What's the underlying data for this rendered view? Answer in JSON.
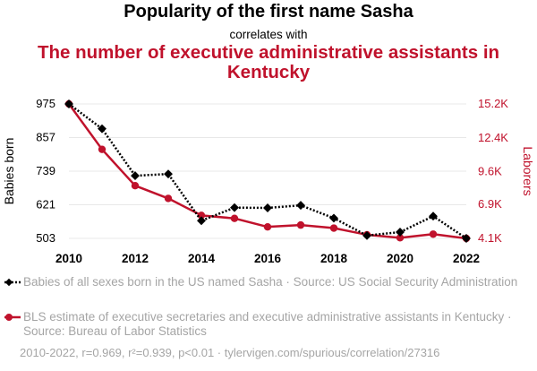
{
  "title_line1": "Popularity of the first name Sasha",
  "title_line2": "correlates with",
  "title_line3": "The number of executive administrative assistants in Kentucky",
  "legend": [
    {
      "text": "Babies of all sexes born in the US named Sasha · Source: US Social Security Administration"
    },
    {
      "text": "BLS estimate of executive secretaries and executive administrative assistants in Kentucky · Source: Bureau of Labor Statistics"
    }
  ],
  "footer": "2010-2022, r=0.969, r²=0.939, p<0.01 · tylervigen.com/spurious/correlation/27316",
  "colors": {
    "series1": "#000000",
    "series2": "#c0122c",
    "grid": "#e8e8e8",
    "legend_text": "#a5a5a5"
  },
  "chart_data": {
    "type": "line",
    "x": [
      2010,
      2011,
      2012,
      2013,
      2014,
      2015,
      2016,
      2017,
      2018,
      2019,
      2020,
      2021,
      2022
    ],
    "x_ticks": [
      2010,
      2012,
      2014,
      2016,
      2018,
      2020,
      2022
    ],
    "xlim": [
      2010,
      2022
    ],
    "ylabel_left": "Babies born",
    "ylabel_right": "Laborers",
    "y_left_ticks": [
      503,
      621,
      739,
      857,
      975
    ],
    "y_left_tick_labels": [
      "503",
      "621",
      "739",
      "857",
      "975"
    ],
    "ylim_left": [
      503,
      975
    ],
    "y_right_ticks": [
      4100,
      6900,
      9600,
      12400,
      15200
    ],
    "y_right_tick_labels": [
      "4.1K",
      "6.9K",
      "9.6K",
      "12.4K",
      "15.2K"
    ],
    "ylim_right": [
      4100,
      15200
    ],
    "grid": true,
    "series": [
      {
        "axis": "left",
        "style": "dotted",
        "marker": "diamond",
        "values": [
          975,
          888,
          723,
          729,
          565,
          611,
          610,
          619,
          574,
          513,
          525,
          581,
          503
        ]
      },
      {
        "axis": "right",
        "style": "solid",
        "marker": "circle",
        "values": [
          15200,
          11450,
          8450,
          7400,
          6000,
          5750,
          5050,
          5200,
          4950,
          4400,
          4150,
          4450,
          4100
        ]
      }
    ]
  }
}
